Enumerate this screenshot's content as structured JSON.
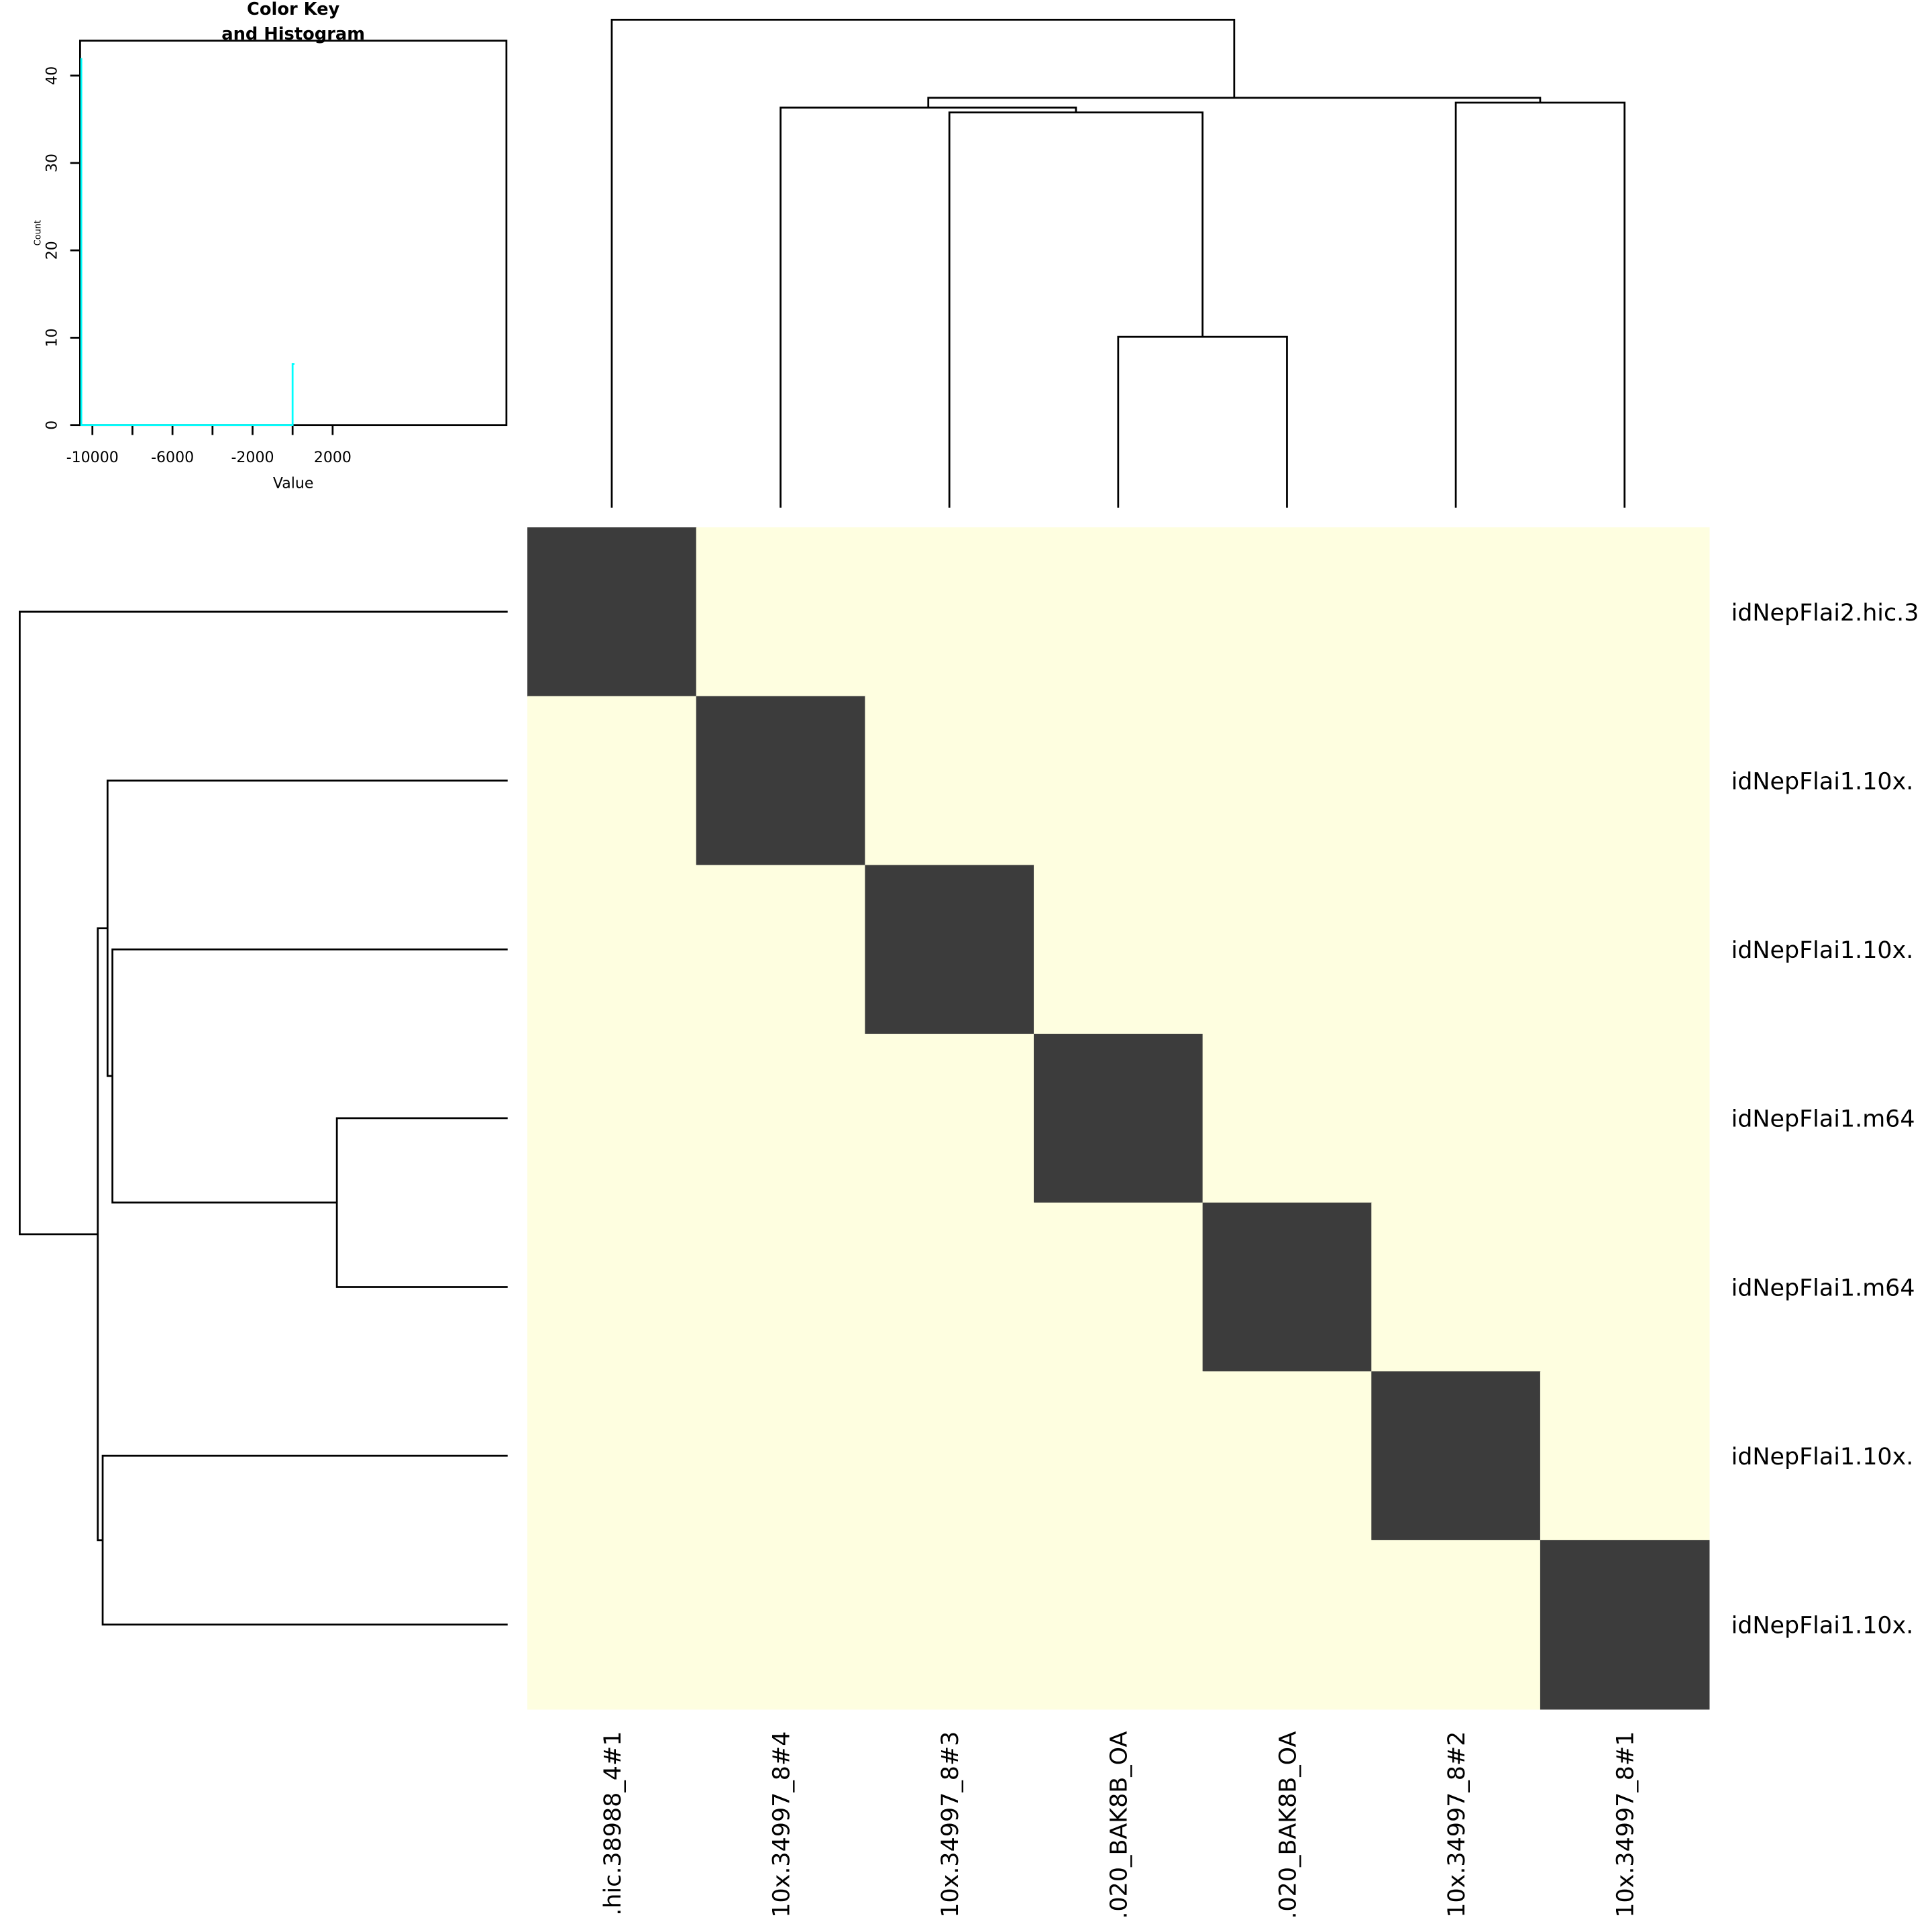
{
  "chart_data": {
    "type": "heatmap",
    "rows": [
      "idNepFlai2.hic.3",
      "idNepFlai1.10x.",
      "idNepFlai1.10x.",
      "idNepFlai1.m64",
      "idNepFlai1.m64",
      "idNepFlai1.10x.",
      "idNepFlai1.10x."
    ],
    "columns": [
      ".hic.38988_4#1",
      "10x.34997_8#4",
      "10x.34997_8#3",
      ".020_BAK8B_OA",
      ".020_BAK8B_OA",
      "10x.34997_8#2",
      "10x.34997_8#1"
    ],
    "values_note_visible": "",
    "matrix": [
      [
        0,
        -10600,
        -10600,
        -10600,
        -10600,
        -10600,
        -10600
      ],
      [
        -10600,
        0,
        -10600,
        -10600,
        -10600,
        -10600,
        -10600
      ],
      [
        -10600,
        -10600,
        0,
        -10600,
        -10600,
        -10600,
        -10600
      ],
      [
        -10600,
        -10600,
        -10600,
        0,
        -10600,
        -10600,
        -10600
      ],
      [
        -10600,
        -10600,
        -10600,
        -10600,
        0,
        -10600,
        -10600
      ],
      [
        -10600,
        -10600,
        -10600,
        -10600,
        -10600,
        0,
        -10600
      ],
      [
        -10600,
        -10600,
        -10600,
        -10600,
        -10600,
        -10600,
        0
      ]
    ],
    "colors": {
      "diagonal": "#3c3c3c",
      "off_diagonal": "#fefee0",
      "histogram": "#00ffff"
    },
    "dendrogram": {
      "merges": [
        [
          4,
          5,
          0.35
        ],
        [
          3,
          "4-5",
          0.81
        ],
        [
          2,
          "3-4-5",
          0.82
        ],
        [
          6,
          7,
          0.83
        ],
        [
          "2-3-4-5",
          "6-7",
          0.84
        ],
        [
          1,
          "rest",
          1.0
        ]
      ]
    },
    "color_key": {
      "title_line1": "Color Key",
      "title_line2": "and Histogram",
      "xlabel": "Value",
      "ylabel": "Count",
      "xticks": [
        "-10000",
        "-6000",
        "-2000",
        "2000"
      ],
      "xtick_values": [
        -10000,
        -8000,
        -6000,
        -4000,
        -2000,
        0,
        2000
      ],
      "yticks": [
        "0",
        "10",
        "20",
        "30",
        "40"
      ],
      "xlim": [
        -10615,
        10680
      ],
      "ylim": [
        0,
        44
      ],
      "histogram": [
        {
          "x": -10600,
          "count": 42
        },
        {
          "x": 0,
          "count": 7
        }
      ]
    }
  }
}
